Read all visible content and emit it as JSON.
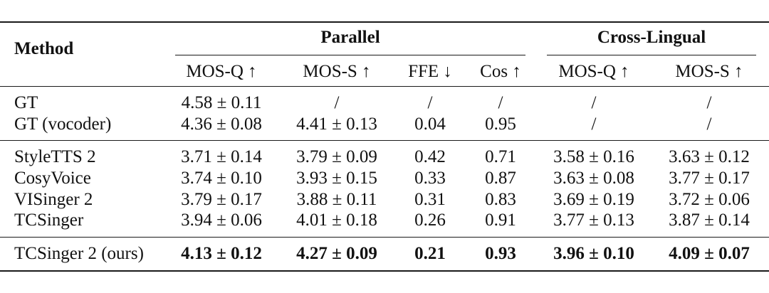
{
  "table": {
    "header": {
      "method": "Method",
      "group_parallel": "Parallel",
      "group_cross": "Cross-Lingual",
      "columns": [
        "MOS-Q ↑",
        "MOS-S ↑",
        "FFE ↓",
        "Cos ↑",
        "MOS-Q ↑",
        "MOS-S ↑"
      ]
    },
    "rows": [
      {
        "method": "GT",
        "cells": [
          "4.58 ± 0.11",
          "/",
          "/",
          "/",
          "/",
          "/"
        ],
        "bold": false
      },
      {
        "method": "GT (vocoder)",
        "cells": [
          "4.36 ± 0.08",
          "4.41 ± 0.13",
          "0.04",
          "0.95",
          "/",
          "/"
        ],
        "bold": false
      },
      {
        "method": "StyleTTS 2",
        "cells": [
          "3.71 ± 0.14",
          "3.79 ± 0.09",
          "0.42",
          "0.71",
          "3.58 ± 0.16",
          "3.63 ± 0.12"
        ],
        "bold": false
      },
      {
        "method": "CosyVoice",
        "cells": [
          "3.74 ± 0.10",
          "3.93 ± 0.15",
          "0.33",
          "0.87",
          "3.63 ± 0.08",
          "3.77 ± 0.17"
        ],
        "bold": false
      },
      {
        "method": "VISinger 2",
        "cells": [
          "3.79 ± 0.17",
          "3.88 ± 0.11",
          "0.31",
          "0.83",
          "3.69 ± 0.19",
          "3.72 ± 0.06"
        ],
        "bold": false
      },
      {
        "method": "TCSinger",
        "cells": [
          "3.94 ± 0.06",
          "4.01 ± 0.18",
          "0.26",
          "0.91",
          "3.77 ± 0.13",
          "3.87 ± 0.14"
        ],
        "bold": false
      },
      {
        "method": "TCSinger 2 (ours)",
        "cells": [
          "4.13 ± 0.12",
          "4.27 ± 0.09",
          "0.21",
          "0.93",
          "3.96 ± 0.10",
          "4.09 ± 0.07"
        ],
        "bold": true
      }
    ]
  }
}
